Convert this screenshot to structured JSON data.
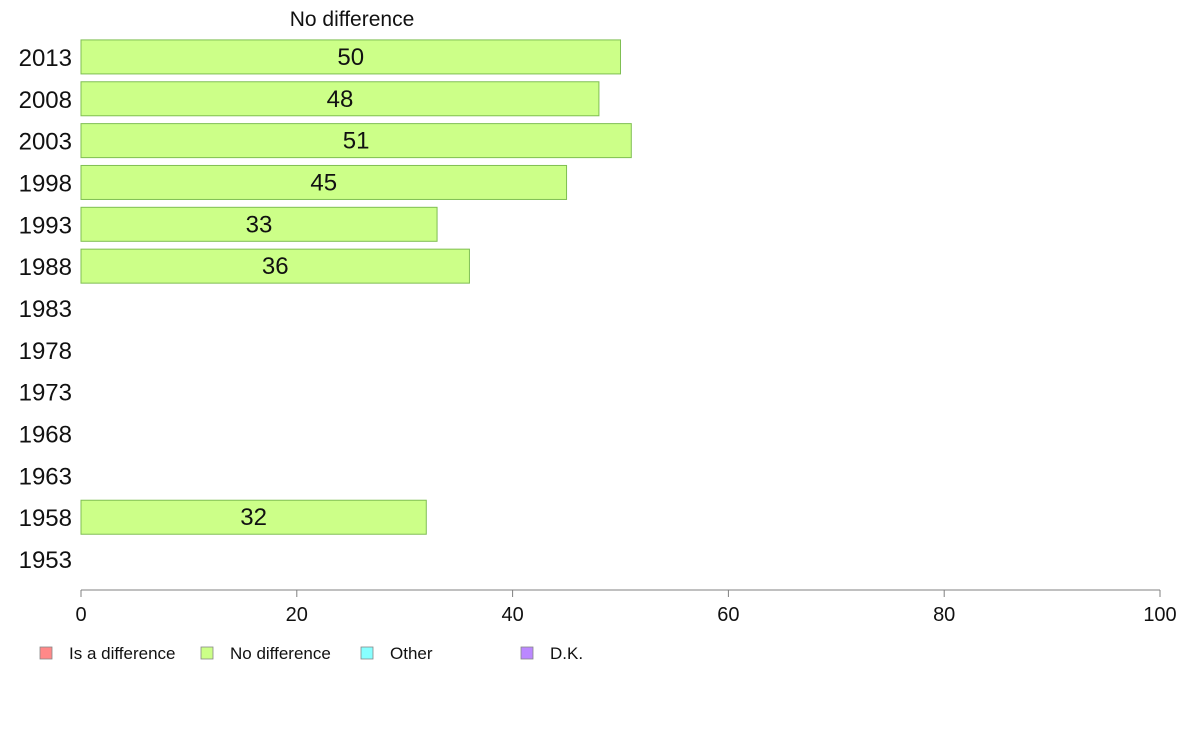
{
  "chart_data": {
    "type": "bar",
    "orientation": "horizontal",
    "title": "No difference",
    "categories": [
      "2013",
      "2008",
      "2003",
      "1998",
      "1993",
      "1988",
      "1983",
      "1978",
      "1973",
      "1968",
      "1963",
      "1958",
      "1953"
    ],
    "series": [
      {
        "name": "No difference",
        "color": "#ccff88",
        "values": [
          50,
          48,
          51,
          45,
          33,
          36,
          null,
          null,
          null,
          null,
          null,
          32,
          null
        ]
      }
    ],
    "xlim": [
      0,
      100
    ],
    "xticks": [
      "0",
      "20",
      "40",
      "60",
      "80",
      "100"
    ],
    "grid": false,
    "legend_position": "bottom",
    "legend": [
      {
        "label": "Is a difference",
        "color": "#ff8888"
      },
      {
        "label": "No difference",
        "color": "#ccff88"
      },
      {
        "label": "Other",
        "color": "#88ffff"
      },
      {
        "label": "D.K.",
        "color": "#bb88ff"
      }
    ]
  }
}
